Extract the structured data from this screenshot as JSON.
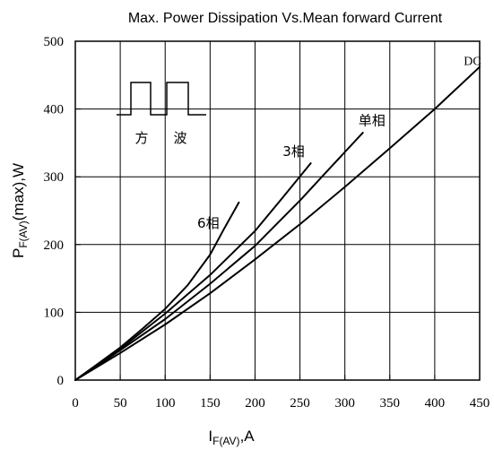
{
  "chart_data": {
    "type": "line",
    "title": "Max. Power Dissipation Vs.Mean forward Current",
    "xlabel": {
      "main": "I",
      "sub": "F(AV)",
      "suffix": ",A"
    },
    "ylabel": {
      "main": "P",
      "sub": "F(AV)",
      "suffix": "(max),W"
    },
    "xlim": [
      0,
      450
    ],
    "ylim": [
      0,
      500
    ],
    "x_ticks": [
      0,
      50,
      100,
      150,
      200,
      250,
      300,
      350,
      400,
      450
    ],
    "y_ticks": [
      0,
      100,
      200,
      300,
      400,
      500
    ],
    "grid": true,
    "series": [
      {
        "name": "6相",
        "points": [
          [
            0,
            0
          ],
          [
            25,
            24
          ],
          [
            50,
            48
          ],
          [
            75,
            76
          ],
          [
            100,
            105
          ],
          [
            125,
            140
          ],
          [
            150,
            185
          ],
          [
            165,
            222
          ],
          [
            182,
            262
          ]
        ]
      },
      {
        "name": "3相",
        "points": [
          [
            0,
            0
          ],
          [
            50,
            46
          ],
          [
            100,
            98
          ],
          [
            150,
            155
          ],
          [
            200,
            220
          ],
          [
            230,
            268
          ],
          [
            262,
            320
          ]
        ]
      },
      {
        "name": "单相",
        "points": [
          [
            0,
            0
          ],
          [
            50,
            44
          ],
          [
            100,
            90
          ],
          [
            150,
            142
          ],
          [
            200,
            198
          ],
          [
            250,
            265
          ],
          [
            280,
            308
          ],
          [
            320,
            365
          ]
        ]
      },
      {
        "name": "DC",
        "points": [
          [
            0,
            0
          ],
          [
            50,
            40
          ],
          [
            100,
            82
          ],
          [
            150,
            128
          ],
          [
            200,
            178
          ],
          [
            250,
            230
          ],
          [
            300,
            285
          ],
          [
            350,
            342
          ],
          [
            400,
            400
          ],
          [
            450,
            462
          ]
        ]
      }
    ],
    "series_label_positions": [
      {
        "name": "6相",
        "x": 148,
        "y": 225
      },
      {
        "name": "3相",
        "x": 243,
        "y": 331
      },
      {
        "name": "单相",
        "x": 330,
        "y": 376
      },
      {
        "name": "DC",
        "x": 442,
        "y": 465
      }
    ],
    "inset": {
      "caption_left": "方",
      "caption_right": "波"
    }
  }
}
